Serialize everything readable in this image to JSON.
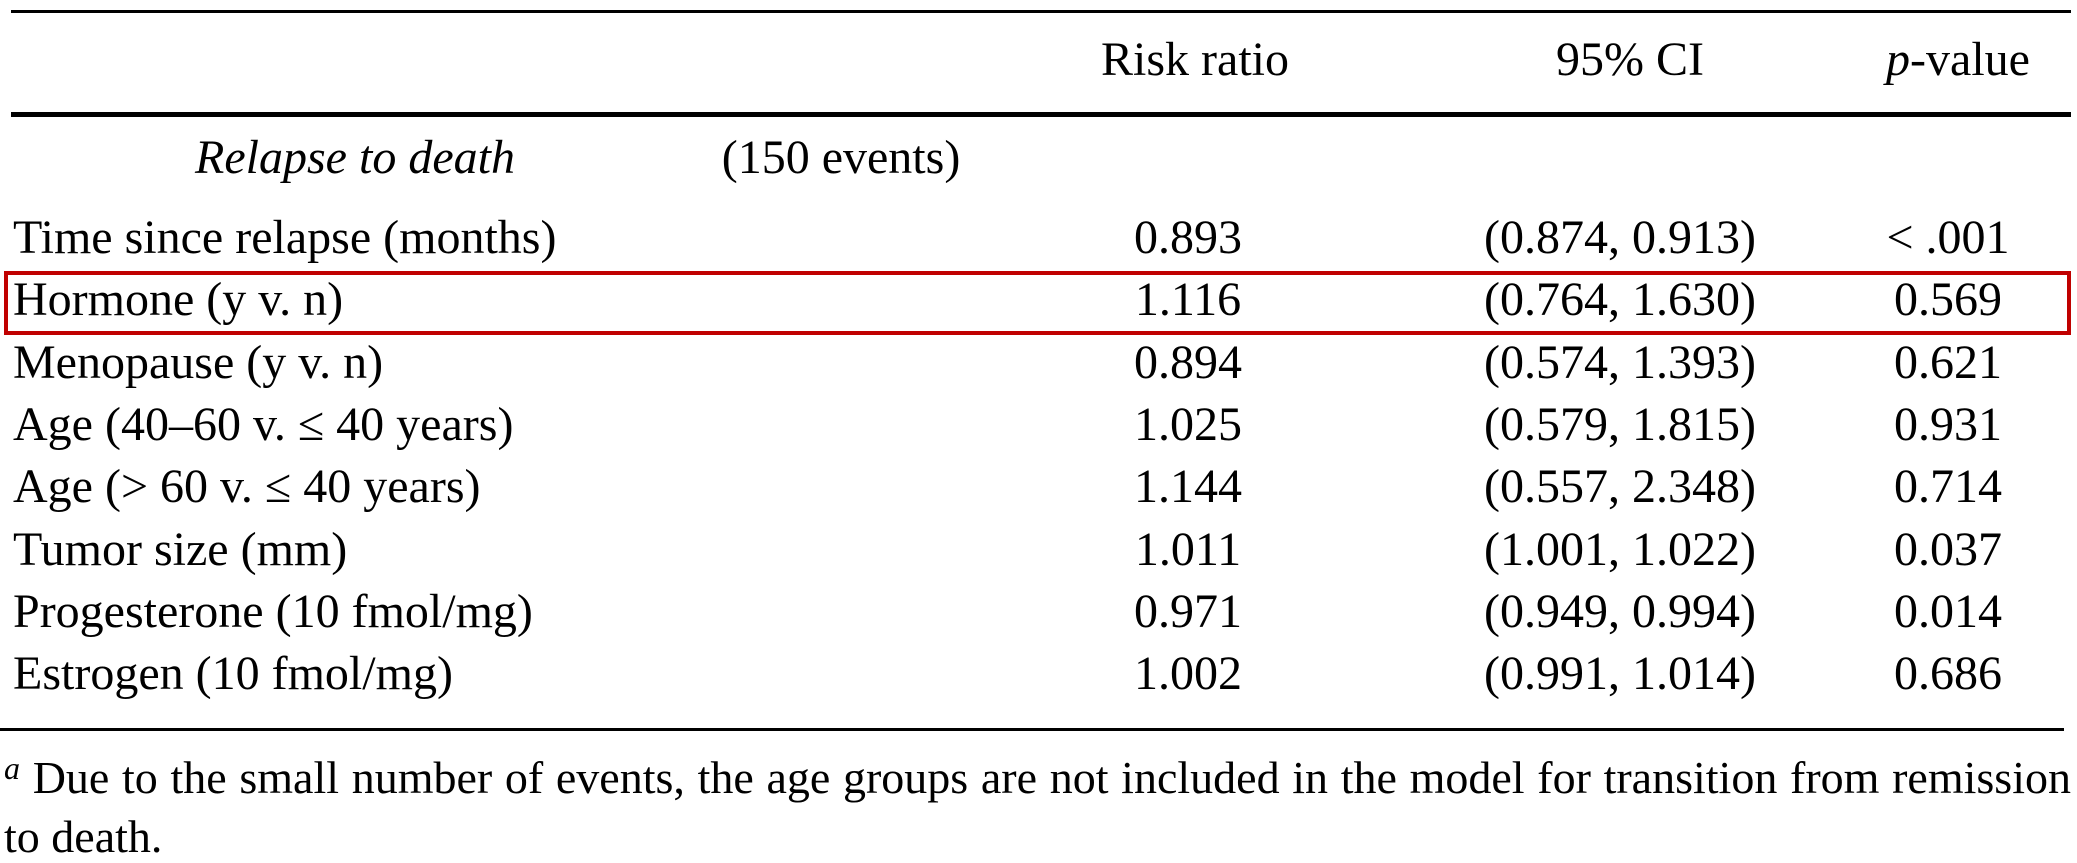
{
  "table": {
    "header": {
      "risk_ratio": "Risk ratio",
      "ci": "95% CI",
      "p_value": {
        "italic": "p",
        "rest": "-value"
      }
    },
    "section": {
      "label": "Relapse to death",
      "events": "(150 events)"
    },
    "rows": [
      [
        "Time since relapse (months)",
        "0.893",
        "(0.874, 0.913)",
        "< .001"
      ],
      [
        "Hormone (y v. n)",
        "1.116",
        "(0.764, 1.630)",
        "0.569"
      ],
      [
        "Menopause (y v. n)",
        "0.894",
        "(0.574, 1.393)",
        "0.621"
      ],
      [
        "Age (40–60 v. ≤ 40 years)",
        "1.025",
        "(0.579, 1.815)",
        "0.931"
      ],
      [
        "Age (> 60 v. ≤ 40 years)",
        "1.144",
        "(0.557, 2.348)",
        "0.714"
      ],
      [
        "Tumor size (mm)",
        "1.011",
        "(1.001, 1.022)",
        "0.037"
      ],
      [
        "Progesterone (10 fmol/mg)",
        "0.971",
        "(0.949, 0.994)",
        "0.014"
      ],
      [
        "Estrogen (10 fmol/mg)",
        "1.002",
        "(0.991, 1.014)",
        "0.686"
      ]
    ],
    "highlight_row": 1,
    "highlight_color": "#c00000",
    "footnote": {
      "marker": "a",
      "text": "Due to the small number of events, the age groups are not included in the model for transition from remission to death."
    }
  }
}
